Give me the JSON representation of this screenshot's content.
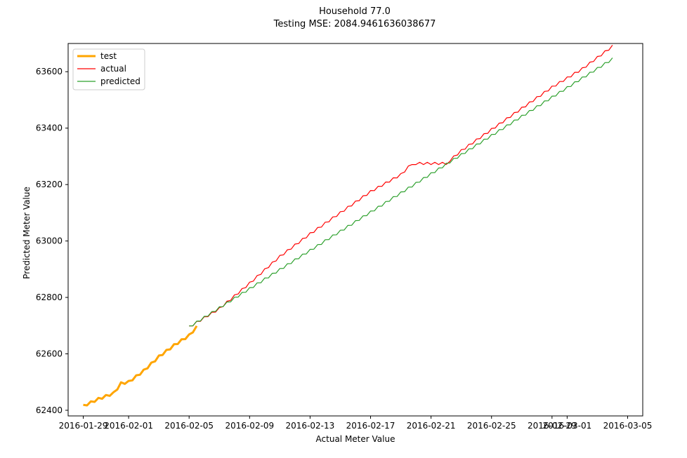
{
  "chart_data": {
    "type": "line",
    "title": "Household 77.0",
    "subtitle": "Testing MSE: 2084.9461636038677",
    "xlabel": "Actual Meter Value",
    "ylabel": "Predicted Meter Value",
    "x_ticks": [
      "2016-01-29",
      "2016-02-01",
      "2016-02-05",
      "2016-02-09",
      "2016-02-13",
      "2016-02-17",
      "2016-02-21",
      "2016-02-25",
      "2016-02-29",
      "2016-03-01",
      "2016-03-05"
    ],
    "y_ticks": [
      62400,
      62600,
      62800,
      63000,
      63200,
      63400,
      63600
    ],
    "ylim": [
      62380,
      63700
    ],
    "xlim": [
      "2016-01-28",
      "2016-03-06"
    ],
    "grid": false,
    "legend_position": "top-left",
    "series": [
      {
        "name": "test",
        "color": "#ffa500",
        "points": [
          [
            "2016-01-29",
            62415
          ],
          [
            "2016-01-30",
            62440
          ],
          [
            "2016-01-31",
            62460
          ],
          [
            "2016-01-31T12",
            62495
          ],
          [
            "2016-02-01",
            62500
          ],
          [
            "2016-02-02",
            62540
          ],
          [
            "2016-02-03",
            62590
          ],
          [
            "2016-02-04",
            62630
          ],
          [
            "2016-02-05",
            62665
          ],
          [
            "2016-02-05T12",
            62695
          ]
        ]
      },
      {
        "name": "actual",
        "color": "#ff0000",
        "points": [
          [
            "2016-02-05",
            62695
          ],
          [
            "2016-02-07",
            62760
          ],
          [
            "2016-02-09",
            62850
          ],
          [
            "2016-02-11",
            62945
          ],
          [
            "2016-02-13",
            63025
          ],
          [
            "2016-02-15",
            63100
          ],
          [
            "2016-02-17",
            63175
          ],
          [
            "2016-02-19",
            63235
          ],
          [
            "2016-02-19T18",
            63275
          ],
          [
            "2016-02-22",
            63275
          ],
          [
            "2016-02-23",
            63320
          ],
          [
            "2016-02-25",
            63395
          ],
          [
            "2016-02-27",
            63470
          ],
          [
            "2016-02-29",
            63545
          ],
          [
            "2016-03-02",
            63610
          ],
          [
            "2016-03-04",
            63690
          ]
        ]
      },
      {
        "name": "predicted",
        "color": "#2ca02c",
        "points": [
          [
            "2016-02-05",
            62695
          ],
          [
            "2016-03-04",
            63645
          ]
        ]
      }
    ]
  }
}
